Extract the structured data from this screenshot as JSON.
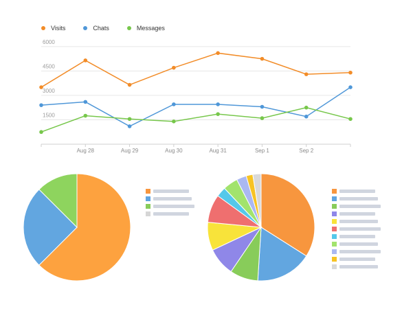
{
  "chart_data": [
    {
      "type": "line",
      "categories": [
        "",
        "Aug 28",
        "Aug 29",
        "Aug 30",
        "Aug 31",
        "Sep 1",
        "Sep 2",
        ""
      ],
      "yticks": [
        1500,
        3000,
        4500,
        6000
      ],
      "ylim": [
        0,
        6500
      ],
      "grid": true,
      "legend_position": "top-left",
      "series": [
        {
          "name": "Visits",
          "color": "#f28c28",
          "values": [
            3500,
            5150,
            3650,
            4700,
            5600,
            5250,
            4300,
            4400
          ]
        },
        {
          "name": "Chats",
          "color": "#4f97d8",
          "values": [
            2400,
            2600,
            1100,
            2450,
            2450,
            2300,
            1700,
            3500
          ]
        },
        {
          "name": "Messages",
          "color": "#77c74b",
          "values": [
            750,
            1750,
            1550,
            1400,
            1850,
            1600,
            2250,
            1550
          ]
        }
      ]
    },
    {
      "type": "pie",
      "legend_position": "right",
      "slices": [
        {
          "value": 62.5,
          "color": "#fda23f"
        },
        {
          "value": 25,
          "color": "#62a6e0"
        },
        {
          "value": 12.5,
          "color": "#8ed45e"
        }
      ],
      "legend_colors": [
        "#f7963e",
        "#5fa4e1",
        "#88cc5a",
        "#d6d6d6"
      ]
    },
    {
      "type": "pie",
      "legend_position": "right",
      "slices": [
        {
          "value": 34,
          "color": "#f7963e"
        },
        {
          "value": 17,
          "color": "#62a6e0"
        },
        {
          "value": 8.5,
          "color": "#88cc5a"
        },
        {
          "value": 8.5,
          "color": "#8f87e8"
        },
        {
          "value": 8.5,
          "color": "#f8e33a"
        },
        {
          "value": 8.5,
          "color": "#ef6f6f"
        },
        {
          "value": 3,
          "color": "#55c8ea"
        },
        {
          "value": 4.5,
          "color": "#a2e36d"
        },
        {
          "value": 3,
          "color": "#aab8f2"
        },
        {
          "value": 2,
          "color": "#f7c324"
        },
        {
          "value": 2.5,
          "color": "#d9d9d9"
        }
      ],
      "legend_colors": [
        "#f7963e",
        "#5fa4e1",
        "#88cc5a",
        "#8f87e8",
        "#f8e33a",
        "#ef6f6f",
        "#55c8ea",
        "#a2e36d",
        "#aab8f2",
        "#f7c324",
        "#d9d9d9"
      ]
    }
  ]
}
